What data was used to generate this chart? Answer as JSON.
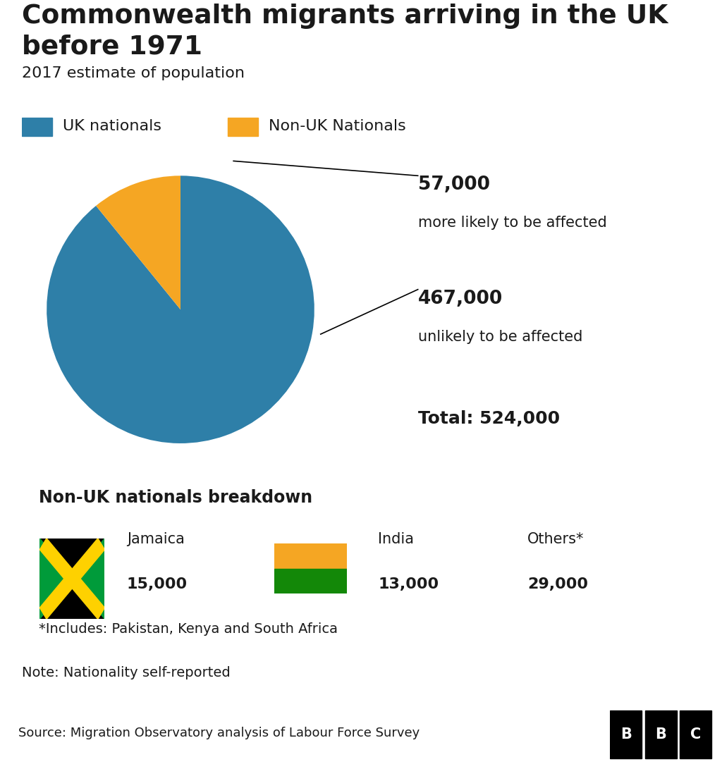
{
  "title": "Commonwealth migrants arriving in the UK\nbefore 1971",
  "subtitle": "2017 estimate of population",
  "pie_values": [
    467000,
    57000
  ],
  "pie_colors": [
    "#2e7fa8",
    "#f5a623"
  ],
  "pie_labels": [
    "UK nationals",
    "Non-UK Nationals"
  ],
  "annotation_57k_label": "57,000",
  "annotation_57k_sub": "more likely to be affected",
  "annotation_467k_label": "467,000",
  "annotation_467k_sub": "unlikely to be affected",
  "total_label": "Total: 524,000",
  "breakdown_title": "Non-UK nationals breakdown",
  "jamaica_label": "Jamaica",
  "jamaica_value": "15,000",
  "india_label": "India",
  "india_value": "13,000",
  "others_label": "Others*",
  "others_value": "29,000",
  "includes_note": "*Includes: Pakistan, Kenya and South Africa",
  "note": "Note: Nationality self-reported",
  "source": "Source: Migration Observatory analysis of Labour Force Survey",
  "bg_color": "#ffffff",
  "breakdown_bg": "#e6e6e6",
  "title_color": "#1a1a1a",
  "source_bar_color": "#d8d8d8",
  "bbc_bg": "#000000",
  "bbc_text": "#ffffff",
  "india_orange": "#f5a623",
  "india_green": "#138808",
  "jamaica_black": "#000000",
  "jamaica_green": "#009B3A",
  "jamaica_yellow": "#FED100"
}
